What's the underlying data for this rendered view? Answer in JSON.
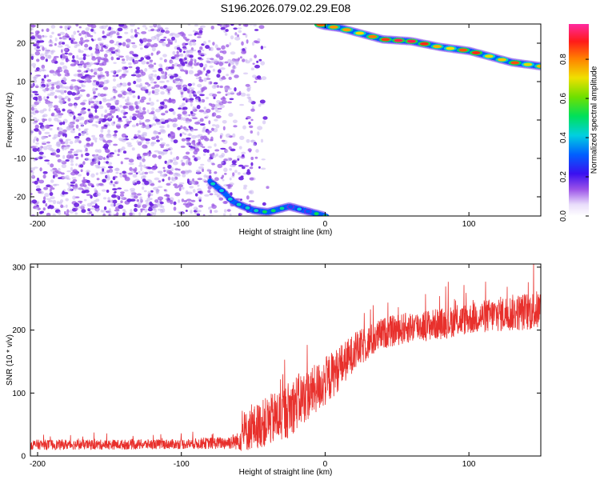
{
  "title": "S196.2026.079.02.29.E08",
  "colors": {
    "snr_line": "#e8302c",
    "weak_speckle": "#c9b4f0",
    "mid_speckle": "#9e5ce6",
    "strong_speckle": "#6a1fe0"
  },
  "chart_data": [
    {
      "id": "spectrogram",
      "type": "heatmap",
      "title": "S196.2026.079.02.29.E08",
      "xlabel": "Height of straight line (km)",
      "ylabel": "Frequency (Hz)",
      "xlim": [
        -205,
        150
      ],
      "ylim": [
        -25,
        25
      ],
      "xticks": [
        -200,
        -100,
        0,
        100
      ],
      "yticks": [
        -20,
        -10,
        0,
        10,
        20
      ],
      "colorbar": {
        "label": "Normalized spectral amplitude",
        "range": [
          0,
          0.98
        ],
        "ticks": [
          0.0,
          0.2,
          0.4,
          0.6,
          0.8
        ],
        "colormap": "rainbow (white-purple-blue-cyan-green-yellow-orange-red-pink)"
      },
      "noise_region": {
        "x": [
          -205,
          -40
        ],
        "y": [
          -25,
          25
        ],
        "amplitude": [
          0.0,
          0.3
        ]
      },
      "ridges": [
        {
          "name": "",
          "points": [
            [
              -80,
              -16
            ],
            [
              -75,
              -17.5
            ],
            [
              -70,
              -19
            ],
            [
              -65,
              -21
            ],
            [
              -60,
              -22
            ],
            [
              -50,
              -23.5
            ],
            [
              -40,
              -24
            ],
            [
              -30,
              -23
            ],
            [
              -25,
              -22.5
            ],
            [
              -15,
              -23.5
            ],
            [
              -5,
              -24.5
            ],
            [
              0,
              -25
            ]
          ],
          "amplitude": [
            0.3,
            0.55
          ]
        },
        {
          "name": "",
          "points": [
            [
              -5,
              25
            ],
            [
              0,
              24.5
            ],
            [
              10,
              24
            ],
            [
              25,
              22.5
            ],
            [
              40,
              21
            ],
            [
              60,
              20.5
            ],
            [
              80,
              19
            ],
            [
              100,
              18
            ],
            [
              115,
              16.5
            ],
            [
              130,
              15
            ],
            [
              150,
              14
            ]
          ],
          "amplitude": [
            0.7,
            0.98
          ]
        }
      ]
    },
    {
      "id": "snr",
      "type": "line",
      "title": "",
      "xlabel": "Height of straight line (km)",
      "ylabel": "SNR (10 * v/v)",
      "xlim": [
        -205,
        150
      ],
      "ylim": [
        0,
        305
      ],
      "xticks": [
        -200,
        -100,
        0,
        100
      ],
      "yticks": [
        0,
        100,
        200,
        300
      ],
      "series": [
        {
          "name": "",
          "envelope_x": [
            -205,
            -150,
            -100,
            -70,
            -60,
            -58,
            -50,
            -40,
            -30,
            -20,
            -10,
            0,
            10,
            20,
            30,
            40,
            50,
            60,
            80,
            100,
            120,
            150
          ],
          "baseline": [
            18,
            18,
            19,
            21,
            24,
            35,
            45,
            55,
            65,
            85,
            100,
            118,
            140,
            165,
            180,
            195,
            200,
            205,
            210,
            218,
            225,
            232
          ],
          "spread": [
            8,
            8,
            8,
            10,
            14,
            30,
            35,
            40,
            45,
            45,
            40,
            40,
            35,
            30,
            28,
            25,
            25,
            25,
            25,
            25,
            28,
            32
          ]
        }
      ]
    }
  ]
}
